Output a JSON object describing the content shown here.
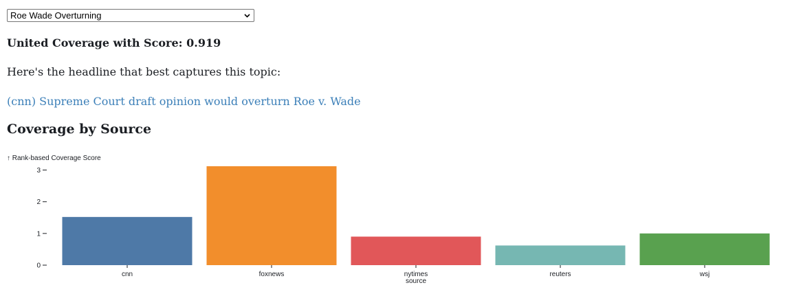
{
  "topic_select": {
    "selected": "Roe Wade Overturning"
  },
  "summary": {
    "score_text": "United Coverage with Score: 0.919",
    "intro_text": "Here's the headline that best captures this topic:",
    "headline_text": "(cnn) Supreme Court draft opinion would overturn Roe v. Wade"
  },
  "section_title": "Coverage by Source",
  "chart_data": {
    "type": "bar",
    "ylabel": "↑ Rank-based Coverage Score",
    "xlabel": "source",
    "categories": [
      "cnn",
      "foxnews",
      "nytimes",
      "reuters",
      "wsj"
    ],
    "values": [
      1.52,
      3.12,
      0.9,
      0.62,
      1.0
    ],
    "colors": [
      "#4e79a7",
      "#f28e2c",
      "#e15759",
      "#76b7b2",
      "#59a14f"
    ],
    "yticks": [
      0,
      1,
      2,
      3
    ],
    "ylim": [
      0,
      3.12
    ],
    "grid": false
  }
}
